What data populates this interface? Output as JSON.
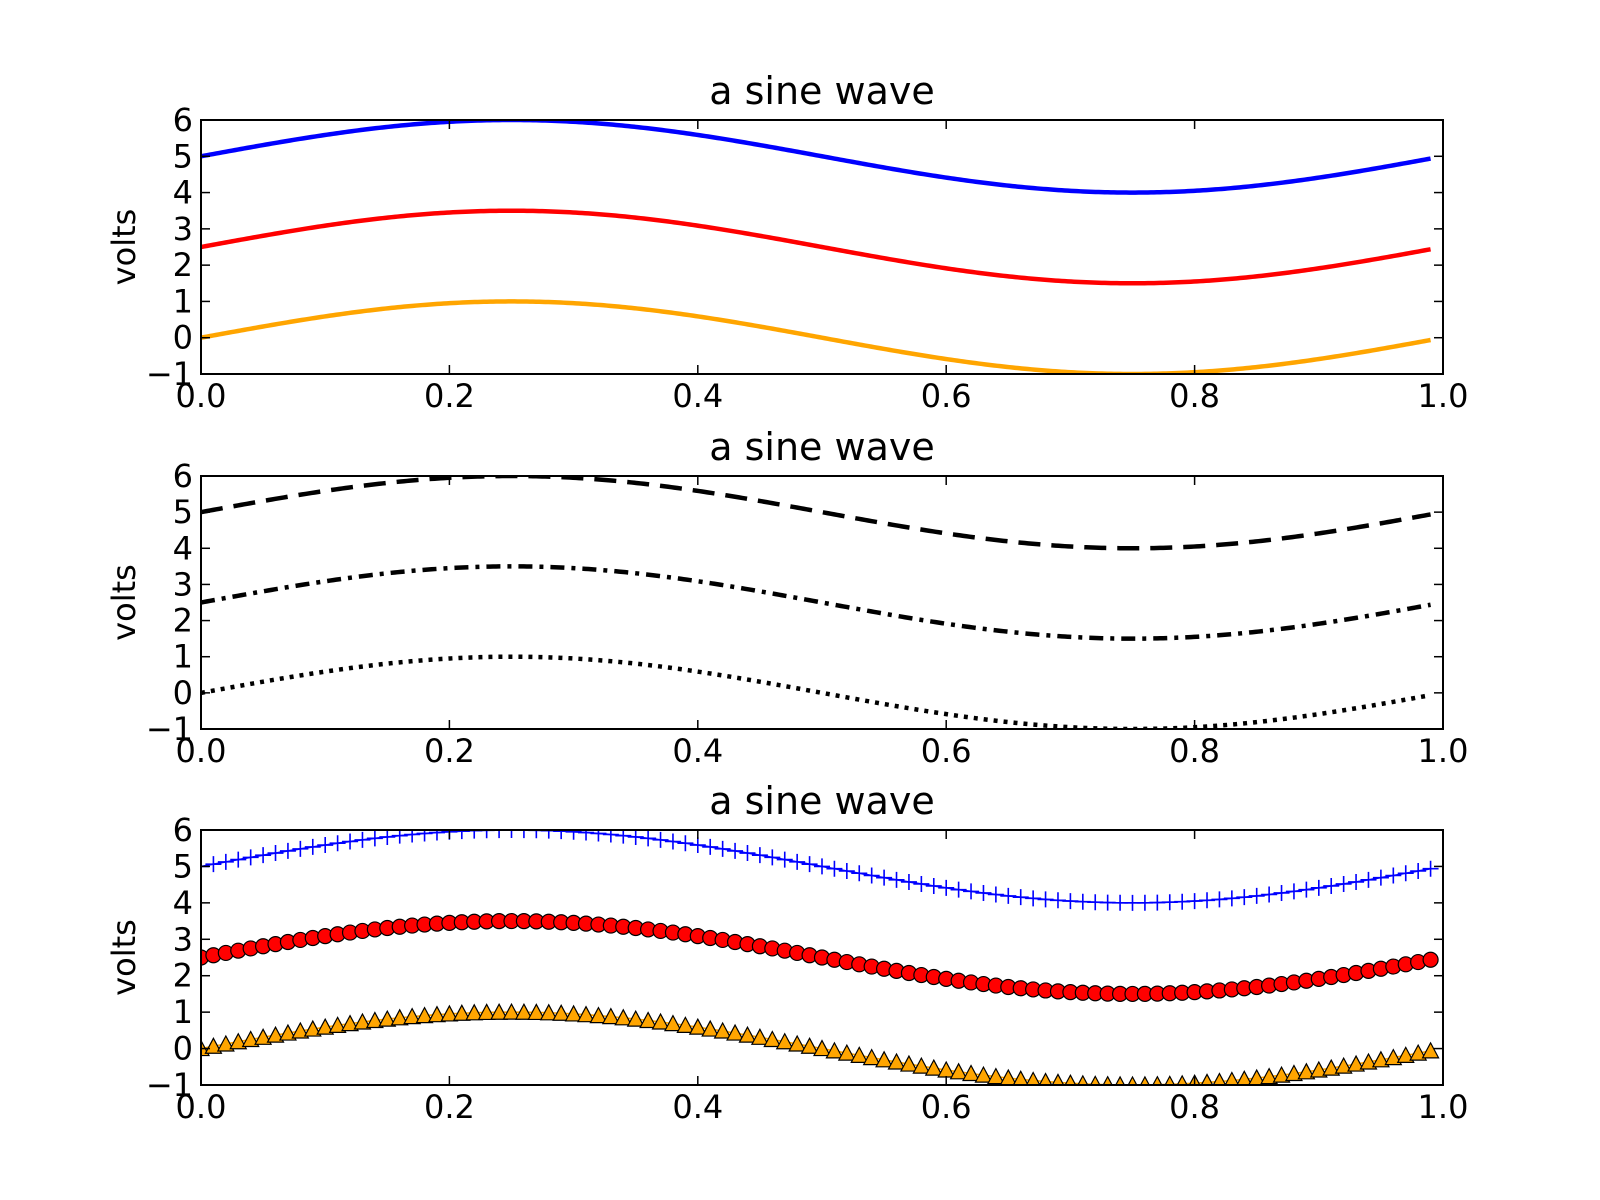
{
  "chart_data": [
    {
      "type": "line",
      "title": "a sine wave",
      "xlabel": "",
      "ylabel": "volts",
      "xlim": [
        0.0,
        1.0
      ],
      "ylim": [
        -1,
        6
      ],
      "xticks": [
        "0.0",
        "0.2",
        "0.4",
        "0.6",
        "0.8",
        "1.0"
      ],
      "yticks": [
        "−1",
        "0",
        "1",
        "2",
        "3",
        "4",
        "5",
        "6"
      ],
      "grid": false,
      "series_formula": "y = sin(2*pi*x) + offset",
      "series": [
        {
          "offset": 5.0,
          "color": "#0000ff",
          "linestyle": "solid",
          "marker": "none"
        },
        {
          "offset": 2.5,
          "color": "#ff0000",
          "linestyle": "solid",
          "marker": "none"
        },
        {
          "offset": 0.0,
          "color": "#ffa500",
          "linestyle": "solid",
          "marker": "none"
        }
      ],
      "x_samples": [
        0.0,
        0.05,
        0.1,
        0.15,
        0.2,
        0.25,
        0.3,
        0.35,
        0.4,
        0.45,
        0.5,
        0.55,
        0.6,
        0.65,
        0.7,
        0.75,
        0.8,
        0.85,
        0.9,
        0.95,
        0.99
      ]
    },
    {
      "type": "line",
      "title": "a sine wave",
      "xlabel": "",
      "ylabel": "volts",
      "xlim": [
        0.0,
        1.0
      ],
      "ylim": [
        -1,
        6
      ],
      "xticks": [
        "0.0",
        "0.2",
        "0.4",
        "0.6",
        "0.8",
        "1.0"
      ],
      "yticks": [
        "−1",
        "0",
        "1",
        "2",
        "3",
        "4",
        "5",
        "6"
      ],
      "grid": false,
      "series_formula": "y = sin(2*pi*x) + offset",
      "series": [
        {
          "offset": 5.0,
          "color": "#000000",
          "linestyle": "dashed",
          "marker": "none"
        },
        {
          "offset": 2.5,
          "color": "#000000",
          "linestyle": "dashdot",
          "marker": "none"
        },
        {
          "offset": 0.0,
          "color": "#000000",
          "linestyle": "dotted",
          "marker": "none"
        }
      ],
      "x_samples": [
        0.0,
        0.05,
        0.1,
        0.15,
        0.2,
        0.25,
        0.3,
        0.35,
        0.4,
        0.45,
        0.5,
        0.55,
        0.6,
        0.65,
        0.7,
        0.75,
        0.8,
        0.85,
        0.9,
        0.95,
        0.99
      ]
    },
    {
      "type": "line",
      "title": "a sine wave",
      "xlabel": "",
      "ylabel": "volts",
      "xlim": [
        0.0,
        1.0
      ],
      "ylim": [
        -1,
        6
      ],
      "xticks": [
        "0.0",
        "0.2",
        "0.4",
        "0.6",
        "0.8",
        "1.0"
      ],
      "yticks": [
        "−1",
        "0",
        "1",
        "2",
        "3",
        "4",
        "5",
        "6"
      ],
      "grid": false,
      "series_formula": "y = sin(2*pi*x) + offset",
      "marker_samples": 100,
      "series": [
        {
          "offset": 5.0,
          "color": "#0000ff",
          "linestyle": "solid",
          "marker": "plus"
        },
        {
          "offset": 2.5,
          "color": "#ff0000",
          "linestyle": "solid",
          "marker": "circle"
        },
        {
          "offset": 0.0,
          "color": "#ffa500",
          "linestyle": "solid",
          "marker": "triangle-up"
        }
      ],
      "x_samples": [
        0.0,
        0.05,
        0.1,
        0.15,
        0.2,
        0.25,
        0.3,
        0.35,
        0.4,
        0.45,
        0.5,
        0.55,
        0.6,
        0.65,
        0.7,
        0.75,
        0.8,
        0.85,
        0.9,
        0.95,
        0.99
      ]
    }
  ]
}
